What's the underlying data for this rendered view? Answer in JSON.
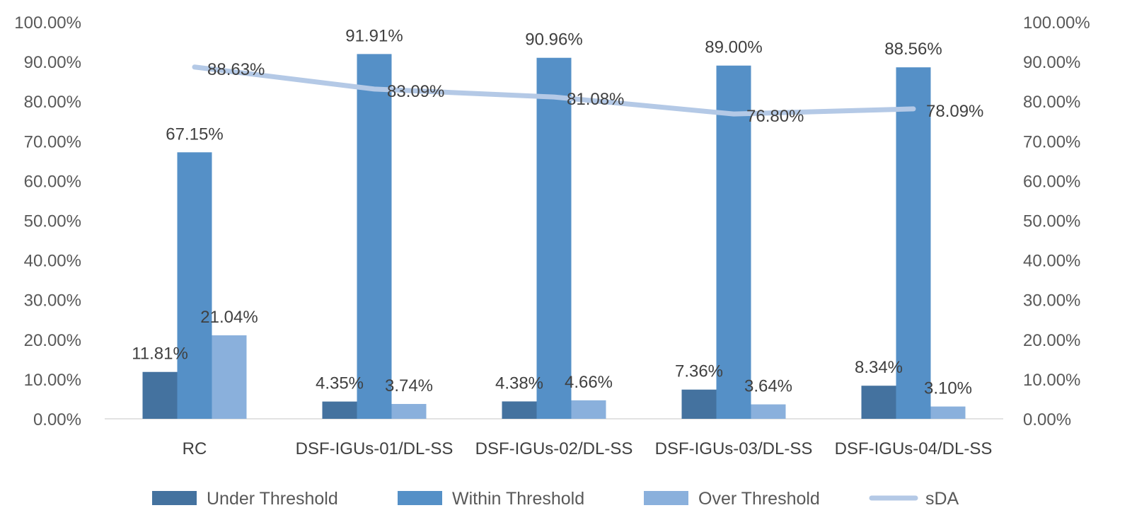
{
  "chart_data": {
    "type": "bar",
    "categories": [
      "RC",
      "DSF-IGUs-01/DL-SS",
      "DSF-IGUs-02/DL-SS",
      "DSF-IGUs-03/DL-SS",
      "DSF-IGUs-04/DL-SS"
    ],
    "series": [
      {
        "name": "Under Threshold",
        "type": "bar",
        "color": "#44729f",
        "values": [
          11.81,
          4.35,
          4.38,
          7.36,
          8.34
        ],
        "labels": [
          "11.81%",
          "4.35%",
          "4.38%",
          "7.36%",
          "8.34%"
        ]
      },
      {
        "name": "Within Threshold",
        "type": "bar",
        "color": "#5590c7",
        "values": [
          67.15,
          91.91,
          90.96,
          89.0,
          88.56
        ],
        "labels": [
          "67.15%",
          "91.91%",
          "90.96%",
          "89.00%",
          "88.56%"
        ]
      },
      {
        "name": "Over Threshold",
        "type": "bar",
        "color": "#8ab0dc",
        "values": [
          21.04,
          3.74,
          4.66,
          3.64,
          3.1
        ],
        "labels": [
          "21.04%",
          "3.74%",
          "4.66%",
          "3.64%",
          "3.10%"
        ]
      },
      {
        "name": "sDA",
        "type": "line",
        "color": "#b4c9e6",
        "values": [
          88.63,
          83.09,
          81.08,
          76.8,
          78.09
        ],
        "labels": [
          "88.63%",
          "83.09%",
          "81.08%",
          "76.80%",
          "78.09%"
        ]
      }
    ],
    "y_ticks": [
      "0.00%",
      "10.00%",
      "20.00%",
      "30.00%",
      "40.00%",
      "50.00%",
      "60.00%",
      "70.00%",
      "80.00%",
      "90.00%",
      "100.00%"
    ],
    "y2_ticks": [
      "0.00%",
      "10.00%",
      "20.00%",
      "30.00%",
      "40.00%",
      "50.00%",
      "60.00%",
      "70.00%",
      "80.00%",
      "90.00%",
      "100.00%"
    ],
    "ylim": [
      0,
      100
    ],
    "y2lim": [
      0,
      100
    ],
    "grid": false,
    "legend": "bottom",
    "title": "",
    "xlabel": "",
    "ylabel": ""
  }
}
